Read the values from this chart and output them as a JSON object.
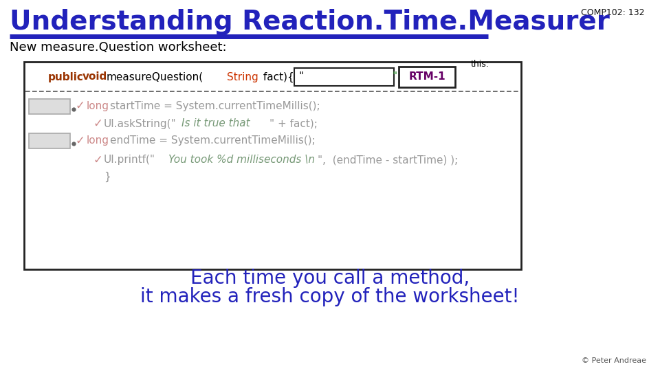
{
  "title": "Understanding Reaction.Time.Measurer",
  "comp_label": "COMP102: 132",
  "subtitle": "New measure.Question worksheet:",
  "bg_color": "#ffffff",
  "title_color": "#2222bb",
  "title_underline_color": "#2222bb",
  "comp_color": "#111111",
  "subtitle_color": "#000000",
  "box_border": "#222222",
  "dashed_color": "#555555",
  "keyword_bold_color": "#993300",
  "string_type_color": "#cc3300",
  "long_color": "#cc8888",
  "check_color": "#cc8888",
  "code_color": "#999999",
  "green_string_color": "#779977",
  "bottom_text_color": "#2222bb",
  "rtm_color": "#660066",
  "credit_color": "#555555",
  "bottom_line1": "Each time you call a method,",
  "bottom_line2": "it makes a fresh copy of the worksheet!",
  "credit": "© Peter Andreae"
}
